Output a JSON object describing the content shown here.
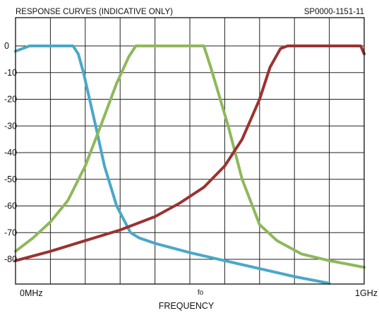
{
  "chart_data": {
    "type": "line",
    "title": "RESPONSE CURVES (INDICATIVE  ONLY)",
    "ref": "SP0000-1151-11",
    "xlabel": "FREQUENCY",
    "x_tick_labels": {
      "start": "0MHz",
      "center": "fo",
      "end": "1GHz"
    },
    "ylabel": "",
    "ylim": [
      -90,
      10
    ],
    "y_ticks": [
      0,
      -10,
      -20,
      -30,
      -40,
      -50,
      -60,
      -70,
      -80
    ],
    "y_tick_labels": [
      "0",
      "-10",
      "-20",
      "-30",
      "-40",
      "-50",
      "-60",
      "-70",
      "-80"
    ],
    "xlim": [
      0,
      1000
    ],
    "x_units": "MHz",
    "grid": true,
    "grid_vertical_divisions": 10,
    "legend": "none",
    "series": [
      {
        "color": "#4aa8c8",
        "points": [
          [
            0,
            -2
          ],
          [
            20,
            -1
          ],
          [
            40,
            0
          ],
          [
            100,
            0
          ],
          [
            165,
            0
          ],
          [
            180,
            -3
          ],
          [
            195,
            -10
          ],
          [
            230,
            -30
          ],
          [
            255,
            -45
          ],
          [
            290,
            -60
          ],
          [
            330,
            -70
          ],
          [
            355,
            -72
          ],
          [
            400,
            -74
          ],
          [
            500,
            -77.5
          ],
          [
            600,
            -80.5
          ],
          [
            700,
            -83.5
          ],
          [
            800,
            -86.5
          ],
          [
            900,
            -89
          ]
        ]
      },
      {
        "color": "#8fb85a",
        "points": [
          [
            0,
            -77
          ],
          [
            50,
            -72
          ],
          [
            100,
            -66
          ],
          [
            150,
            -58
          ],
          [
            200,
            -45
          ],
          [
            250,
            -28
          ],
          [
            290,
            -14
          ],
          [
            325,
            -4
          ],
          [
            345,
            0
          ],
          [
            420,
            0
          ],
          [
            500,
            0
          ],
          [
            540,
            0
          ],
          [
            560,
            -8
          ],
          [
            610,
            -30
          ],
          [
            650,
            -50
          ],
          [
            700,
            -67
          ],
          [
            750,
            -73
          ],
          [
            820,
            -78
          ],
          [
            900,
            -80.5
          ],
          [
            1000,
            -83
          ]
        ]
      },
      {
        "color": "#9b3230",
        "points": [
          [
            0,
            -80.5
          ],
          [
            100,
            -77
          ],
          [
            200,
            -73
          ],
          [
            300,
            -69
          ],
          [
            400,
            -64
          ],
          [
            470,
            -59
          ],
          [
            540,
            -53
          ],
          [
            600,
            -45
          ],
          [
            650,
            -35
          ],
          [
            700,
            -20
          ],
          [
            730,
            -8
          ],
          [
            760,
            -1
          ],
          [
            780,
            0
          ],
          [
            850,
            0
          ],
          [
            930,
            0
          ],
          [
            990,
            0
          ],
          [
            1000,
            -3
          ]
        ]
      }
    ]
  }
}
